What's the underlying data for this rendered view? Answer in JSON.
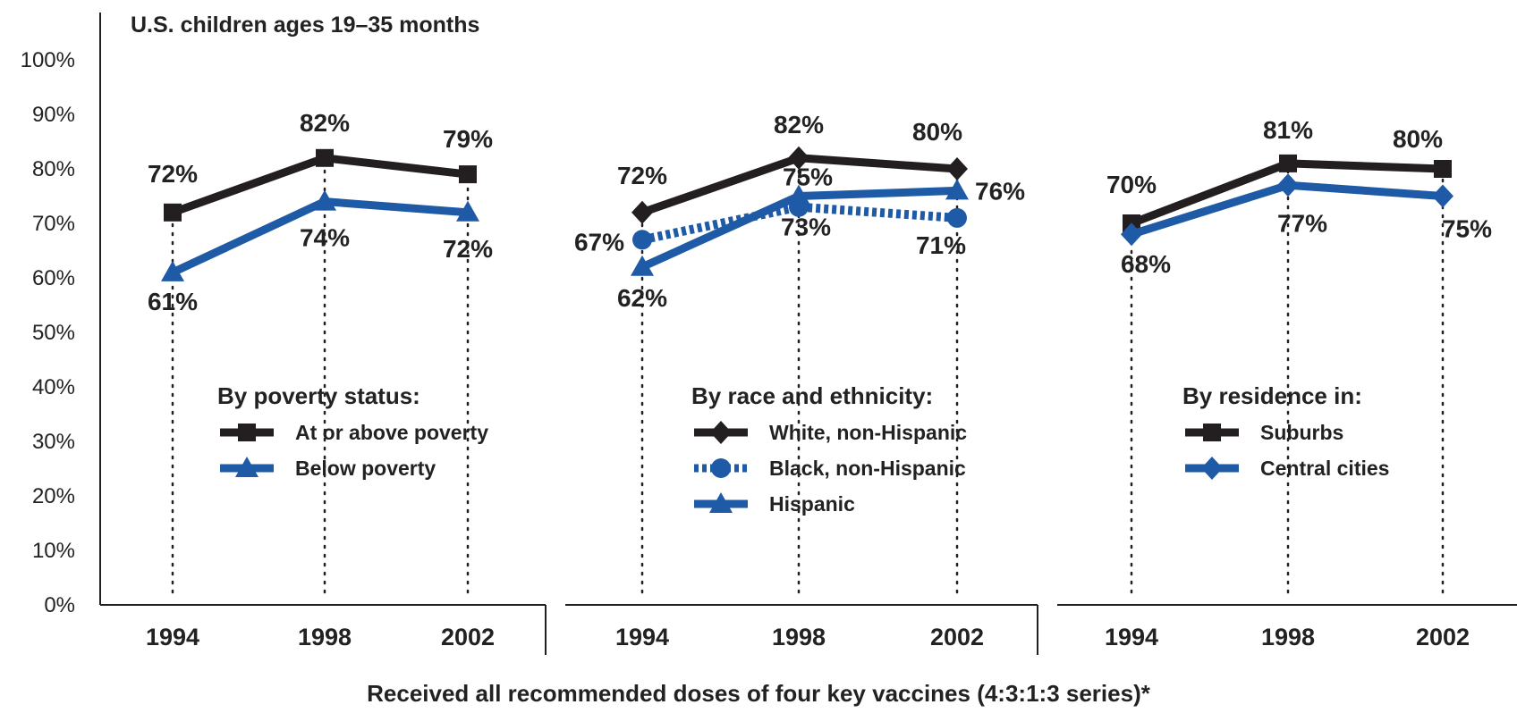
{
  "chart_data": {
    "type": "line",
    "subtitle": "U.S. children ages 19–35 months",
    "caption": "Received all recommended doses of four key vaccines (4:3:1:3 series)*",
    "ylim": [
      0,
      100
    ],
    "y_ticks": [
      "0%",
      "10%",
      "20%",
      "30%",
      "40%",
      "50%",
      "60%",
      "70%",
      "80%",
      "90%",
      "100%"
    ],
    "grid": false,
    "colors": {
      "black": "#231f20",
      "blue": "#1f5aa6"
    },
    "panels": [
      {
        "legend_title": "By poverty status:",
        "categories": [
          "1994",
          "1998",
          "2002"
        ],
        "series": [
          {
            "name": "At or above poverty",
            "values": [
              72,
              82,
              79
            ],
            "labels": [
              "72%",
              "82%",
              "79%"
            ],
            "color": "#231f20",
            "marker": "square",
            "dashed": false
          },
          {
            "name": "Below poverty",
            "values": [
              61,
              74,
              72
            ],
            "labels": [
              "61%",
              "74%",
              "72%"
            ],
            "color": "#1f5aa6",
            "marker": "triangle",
            "dashed": false
          }
        ]
      },
      {
        "legend_title": "By race and ethnicity:",
        "categories": [
          "1994",
          "1998",
          "2002"
        ],
        "series": [
          {
            "name": "White, non-Hispanic",
            "values": [
              72,
              82,
              80
            ],
            "labels": [
              "72%",
              "82%",
              "80%"
            ],
            "color": "#231f20",
            "marker": "diamond",
            "dashed": false
          },
          {
            "name": "Black, non-Hispanic",
            "values": [
              67,
              73,
              71
            ],
            "labels": [
              "67%",
              "73%",
              "71%"
            ],
            "color": "#1f5aa6",
            "marker": "circle",
            "dashed": true
          },
          {
            "name": "Hispanic",
            "values": [
              62,
              75,
              76
            ],
            "labels": [
              "62%",
              "75%",
              "76%"
            ],
            "color": "#1f5aa6",
            "marker": "triangle",
            "dashed": false
          }
        ]
      },
      {
        "legend_title": "By residence in:",
        "categories": [
          "1994",
          "1998",
          "2002"
        ],
        "series": [
          {
            "name": "Suburbs",
            "values": [
              70,
              81,
              80
            ],
            "labels": [
              "70%",
              "81%",
              "80%"
            ],
            "color": "#231f20",
            "marker": "square",
            "dashed": false
          },
          {
            "name": "Central cities",
            "values": [
              68,
              77,
              75
            ],
            "labels": [
              "68%",
              "77%",
              "75%"
            ],
            "color": "#1f5aa6",
            "marker": "diamond",
            "dashed": false
          }
        ]
      }
    ]
  }
}
